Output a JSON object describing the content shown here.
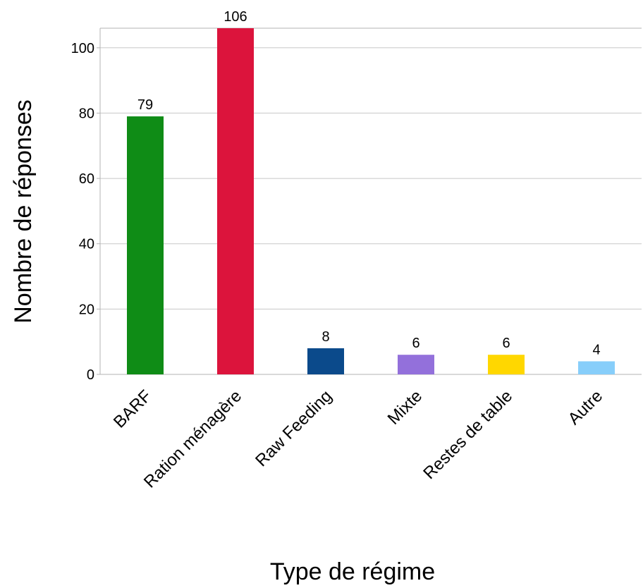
{
  "chart_data": {
    "type": "bar",
    "title": "",
    "xlabel": "Type de régime",
    "ylabel": "Nombre de réponses",
    "categories": [
      "BARF",
      "Ration ménagère",
      "Raw Feeding",
      "Mixte",
      "Restes de table",
      "Autre"
    ],
    "values": [
      79,
      106,
      8,
      6,
      6,
      4
    ],
    "colors": [
      "#0f8c16",
      "#dc143c",
      "#0b4a8b",
      "#9370db",
      "#ffd700",
      "#87cefa"
    ],
    "ylim": [
      0,
      106
    ],
    "yticks": [
      0,
      20,
      40,
      60,
      80,
      100
    ],
    "grid": true,
    "data_labels": true
  }
}
